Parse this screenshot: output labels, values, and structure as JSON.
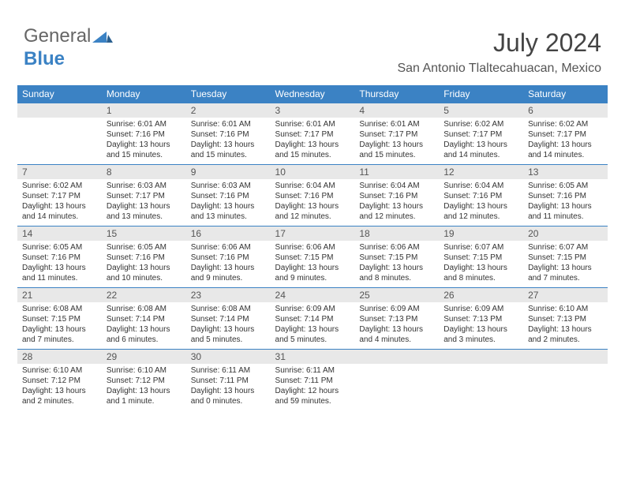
{
  "logo": {
    "part1": "General",
    "part2": "Blue"
  },
  "title": "July 2024",
  "subtitle": "San Antonio Tlaltecahuacan, Mexico",
  "colors": {
    "header_bg": "#3b82c4",
    "header_text": "#ffffff",
    "daynum_bg": "#e8e8e8",
    "border": "#3b82c4",
    "text": "#333333"
  },
  "weekdays": [
    "Sunday",
    "Monday",
    "Tuesday",
    "Wednesday",
    "Thursday",
    "Friday",
    "Saturday"
  ],
  "cells": [
    {
      "day": "",
      "text": ""
    },
    {
      "day": "1",
      "text": "Sunrise: 6:01 AM\nSunset: 7:16 PM\nDaylight: 13 hours and 15 minutes."
    },
    {
      "day": "2",
      "text": "Sunrise: 6:01 AM\nSunset: 7:16 PM\nDaylight: 13 hours and 15 minutes."
    },
    {
      "day": "3",
      "text": "Sunrise: 6:01 AM\nSunset: 7:17 PM\nDaylight: 13 hours and 15 minutes."
    },
    {
      "day": "4",
      "text": "Sunrise: 6:01 AM\nSunset: 7:17 PM\nDaylight: 13 hours and 15 minutes."
    },
    {
      "day": "5",
      "text": "Sunrise: 6:02 AM\nSunset: 7:17 PM\nDaylight: 13 hours and 14 minutes."
    },
    {
      "day": "6",
      "text": "Sunrise: 6:02 AM\nSunset: 7:17 PM\nDaylight: 13 hours and 14 minutes."
    },
    {
      "day": "7",
      "text": "Sunrise: 6:02 AM\nSunset: 7:17 PM\nDaylight: 13 hours and 14 minutes."
    },
    {
      "day": "8",
      "text": "Sunrise: 6:03 AM\nSunset: 7:17 PM\nDaylight: 13 hours and 13 minutes."
    },
    {
      "day": "9",
      "text": "Sunrise: 6:03 AM\nSunset: 7:16 PM\nDaylight: 13 hours and 13 minutes."
    },
    {
      "day": "10",
      "text": "Sunrise: 6:04 AM\nSunset: 7:16 PM\nDaylight: 13 hours and 12 minutes."
    },
    {
      "day": "11",
      "text": "Sunrise: 6:04 AM\nSunset: 7:16 PM\nDaylight: 13 hours and 12 minutes."
    },
    {
      "day": "12",
      "text": "Sunrise: 6:04 AM\nSunset: 7:16 PM\nDaylight: 13 hours and 12 minutes."
    },
    {
      "day": "13",
      "text": "Sunrise: 6:05 AM\nSunset: 7:16 PM\nDaylight: 13 hours and 11 minutes."
    },
    {
      "day": "14",
      "text": "Sunrise: 6:05 AM\nSunset: 7:16 PM\nDaylight: 13 hours and 11 minutes."
    },
    {
      "day": "15",
      "text": "Sunrise: 6:05 AM\nSunset: 7:16 PM\nDaylight: 13 hours and 10 minutes."
    },
    {
      "day": "16",
      "text": "Sunrise: 6:06 AM\nSunset: 7:16 PM\nDaylight: 13 hours and 9 minutes."
    },
    {
      "day": "17",
      "text": "Sunrise: 6:06 AM\nSunset: 7:15 PM\nDaylight: 13 hours and 9 minutes."
    },
    {
      "day": "18",
      "text": "Sunrise: 6:06 AM\nSunset: 7:15 PM\nDaylight: 13 hours and 8 minutes."
    },
    {
      "day": "19",
      "text": "Sunrise: 6:07 AM\nSunset: 7:15 PM\nDaylight: 13 hours and 8 minutes."
    },
    {
      "day": "20",
      "text": "Sunrise: 6:07 AM\nSunset: 7:15 PM\nDaylight: 13 hours and 7 minutes."
    },
    {
      "day": "21",
      "text": "Sunrise: 6:08 AM\nSunset: 7:15 PM\nDaylight: 13 hours and 7 minutes."
    },
    {
      "day": "22",
      "text": "Sunrise: 6:08 AM\nSunset: 7:14 PM\nDaylight: 13 hours and 6 minutes."
    },
    {
      "day": "23",
      "text": "Sunrise: 6:08 AM\nSunset: 7:14 PM\nDaylight: 13 hours and 5 minutes."
    },
    {
      "day": "24",
      "text": "Sunrise: 6:09 AM\nSunset: 7:14 PM\nDaylight: 13 hours and 5 minutes."
    },
    {
      "day": "25",
      "text": "Sunrise: 6:09 AM\nSunset: 7:13 PM\nDaylight: 13 hours and 4 minutes."
    },
    {
      "day": "26",
      "text": "Sunrise: 6:09 AM\nSunset: 7:13 PM\nDaylight: 13 hours and 3 minutes."
    },
    {
      "day": "27",
      "text": "Sunrise: 6:10 AM\nSunset: 7:13 PM\nDaylight: 13 hours and 2 minutes."
    },
    {
      "day": "28",
      "text": "Sunrise: 6:10 AM\nSunset: 7:12 PM\nDaylight: 13 hours and 2 minutes."
    },
    {
      "day": "29",
      "text": "Sunrise: 6:10 AM\nSunset: 7:12 PM\nDaylight: 13 hours and 1 minute."
    },
    {
      "day": "30",
      "text": "Sunrise: 6:11 AM\nSunset: 7:11 PM\nDaylight: 13 hours and 0 minutes."
    },
    {
      "day": "31",
      "text": "Sunrise: 6:11 AM\nSunset: 7:11 PM\nDaylight: 12 hours and 59 minutes."
    },
    {
      "day": "",
      "text": ""
    },
    {
      "day": "",
      "text": ""
    },
    {
      "day": "",
      "text": ""
    }
  ]
}
